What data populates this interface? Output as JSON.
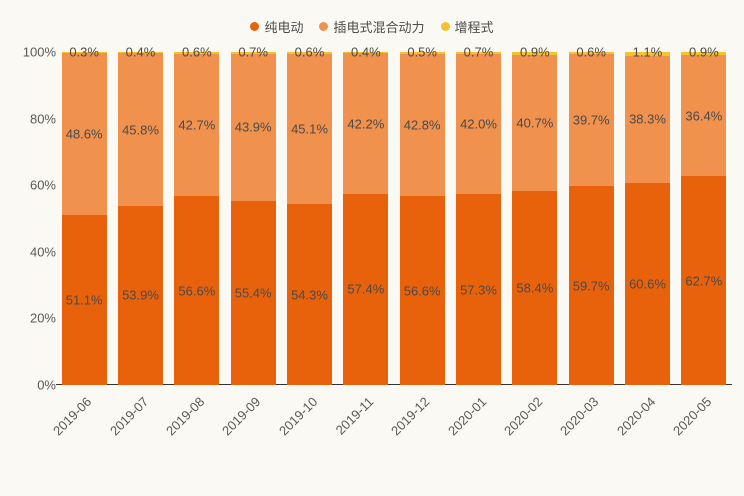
{
  "colors": {
    "background": "#faf9f4",
    "axis_line": "#333333",
    "tick_text": "#595959",
    "value_label_text": "#4a4a4a",
    "pure_electric": "#e8620c",
    "plugin_hybrid": "#f0914e",
    "extended_range": "#f3c230"
  },
  "chart_data": {
    "type": "bar",
    "stacked": true,
    "title": "",
    "xlabel": "",
    "ylabel": "",
    "legend_position": "top",
    "grid": false,
    "ylim": [
      0,
      100
    ],
    "y_ticks": [
      0,
      20,
      40,
      60,
      80,
      100
    ],
    "y_tick_labels": [
      "0%",
      "20%",
      "40%",
      "60%",
      "80%",
      "100%"
    ],
    "categories": [
      "2019-06",
      "2019-07",
      "2019-08",
      "2019-09",
      "2019-10",
      "2019-11",
      "2019-12",
      "2020-01",
      "2020-02",
      "2020-03",
      "2020-04",
      "2020-05"
    ],
    "series": [
      {
        "name": "纯电动",
        "color": "#e8620c",
        "values": [
          51.1,
          53.9,
          56.6,
          55.4,
          54.3,
          57.4,
          56.6,
          57.3,
          58.4,
          59.7,
          60.6,
          62.7
        ],
        "value_labels": [
          "51.1%",
          "53.9%",
          "56.6%",
          "55.4%",
          "54.3%",
          "57.4%",
          "56.6%",
          "57.3%",
          "58.4%",
          "59.7%",
          "60.6%",
          "62.7%"
        ]
      },
      {
        "name": "插电式混合动力",
        "color": "#f0914e",
        "values": [
          48.6,
          45.8,
          42.7,
          43.9,
          45.1,
          42.2,
          42.8,
          42.0,
          40.7,
          39.7,
          38.3,
          36.4
        ],
        "value_labels": [
          "48.6%",
          "45.8%",
          "42.7%",
          "43.9%",
          "45.1%",
          "42.2%",
          "42.8%",
          "42.0%",
          "40.7%",
          "39.7%",
          "38.3%",
          "36.4%"
        ]
      },
      {
        "name": "增程式",
        "color": "#f3c230",
        "values": [
          0.3,
          0.4,
          0.6,
          0.7,
          0.6,
          0.4,
          0.5,
          0.7,
          0.9,
          0.6,
          1.1,
          0.9
        ],
        "value_labels": [
          "0.3%",
          "0.4%",
          "0.6%",
          "0.7%",
          "0.6%",
          "0.4%",
          "0.5%",
          "0.7%",
          "0.9%",
          "0.6%",
          "1.1%",
          "0.9%"
        ]
      }
    ]
  }
}
